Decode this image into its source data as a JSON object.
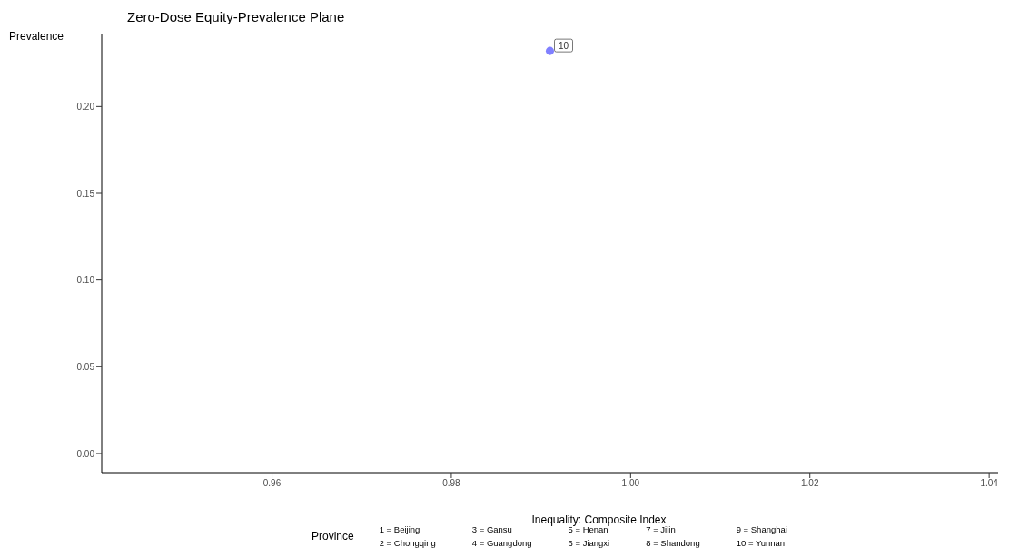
{
  "chart_data": {
    "type": "scatter",
    "title": "Zero-Dose Equity-Prevalence Plane",
    "xlabel": "Inequality: Composite Index",
    "ylabel": "Prevalence",
    "legend_title": "Province",
    "x": [
      0.991
    ],
    "series": [
      {
        "color": "#8080ff",
        "values": [
          0.232
        ]
      }
    ],
    "xlim": [
      0.941,
      1.041
    ],
    "xticks": [
      0.96,
      0.98,
      {
        "value": 1.0,
        "label": "1.00"
      },
      1.02,
      1.04
    ],
    "ylim": [
      -0.011,
      0.242
    ],
    "yticks": [
      {
        "value": 0,
        "label": "0.00"
      },
      0.05,
      {
        "value": 0.1,
        "label": "0.10"
      },
      0.15,
      {
        "value": 0.2,
        "label": "0.20"
      }
    ],
    "grid": false,
    "marker": "circle",
    "annotations": [
      {
        "text": "10",
        "x": 0.991,
        "y": 0.232
      },
      "1 = Beijing",
      "2 = Chongqing",
      "3 = Gansu",
      "4 = Guangdong",
      "5 = Henan",
      "6 = Jiangxi",
      "7 = Jilin",
      "8 = Shandong",
      "9 = Shanghai",
      "10 = Yunnan"
    ]
  }
}
